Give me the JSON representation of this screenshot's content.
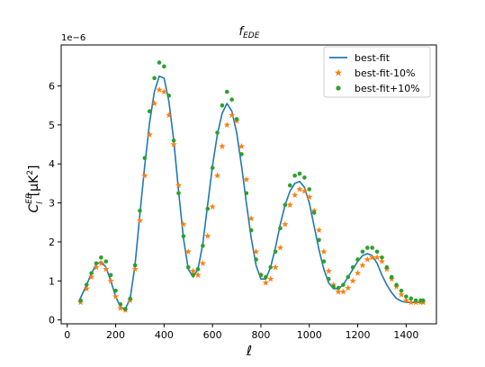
{
  "chart_data": {
    "type": "line",
    "title": "f_EDE",
    "title_main": "f",
    "title_sub": "EDE",
    "xlabel": "ℓ",
    "ylabel": "C_ℓ^{EB} [μK²]",
    "ylabel_parts": {
      "base": "C",
      "sup": "EB",
      "sub": "l",
      "rest": "[μK",
      "pow": "2",
      "close": "]"
    },
    "y_scale_label": "1e−6",
    "xlim": [
      -25,
      1525
    ],
    "ylim": [
      -0.1,
      7.05
    ],
    "x_ticks": [
      0,
      200,
      400,
      600,
      800,
      1000,
      1200,
      1400
    ],
    "x_tick_labels": [
      "0",
      "200",
      "400",
      "600",
      "800",
      "1000",
      "1200",
      "1400"
    ],
    "y_ticks": [
      0,
      1,
      2,
      3,
      4,
      5,
      6
    ],
    "y_tick_labels": [
      "0",
      "1",
      "2",
      "3",
      "4",
      "5",
      "6"
    ],
    "y_multiplier": 1e-06,
    "grid": false,
    "legend_position": "top-right",
    "colors": {
      "line": "#1f77b4",
      "star": "#ff7f0e",
      "dot": "#2ca02c"
    },
    "series": [
      {
        "name": "best-fit",
        "style": "line",
        "x": [
          50,
          80,
          100,
          120,
          140,
          160,
          180,
          200,
          220,
          240,
          260,
          280,
          300,
          320,
          340,
          360,
          380,
          400,
          420,
          440,
          460,
          480,
          500,
          520,
          540,
          560,
          580,
          600,
          620,
          640,
          660,
          680,
          700,
          720,
          740,
          760,
          780,
          800,
          820,
          840,
          860,
          880,
          900,
          920,
          940,
          960,
          980,
          1000,
          1020,
          1040,
          1060,
          1080,
          1100,
          1120,
          1140,
          1160,
          1180,
          1200,
          1220,
          1240,
          1260,
          1280,
          1300,
          1320,
          1340,
          1360,
          1380,
          1400,
          1420,
          1440,
          1460,
          1470
        ],
        "y": [
          0.5,
          0.9,
          1.2,
          1.42,
          1.5,
          1.35,
          1.0,
          0.6,
          0.33,
          0.28,
          0.55,
          1.4,
          2.7,
          3.95,
          5.05,
          5.85,
          6.25,
          6.2,
          5.6,
          4.6,
          3.3,
          2.1,
          1.3,
          1.1,
          1.3,
          1.95,
          2.95,
          3.95,
          4.75,
          5.3,
          5.55,
          5.35,
          4.8,
          3.95,
          3.0,
          2.1,
          1.4,
          1.05,
          1.05,
          1.35,
          1.85,
          2.45,
          2.95,
          3.3,
          3.5,
          3.55,
          3.4,
          3.0,
          2.4,
          1.8,
          1.3,
          0.95,
          0.8,
          0.8,
          0.9,
          1.1,
          1.3,
          1.5,
          1.65,
          1.7,
          1.65,
          1.45,
          1.15,
          0.9,
          0.7,
          0.55,
          0.48,
          0.45,
          0.45,
          0.45,
          0.45,
          0.45
        ]
      },
      {
        "name": "best-fit-10%",
        "style": "star",
        "x": [
          55,
          80,
          100,
          120,
          140,
          160,
          180,
          200,
          220,
          240,
          260,
          280,
          300,
          320,
          340,
          360,
          380,
          400,
          420,
          440,
          460,
          480,
          500,
          520,
          540,
          560,
          580,
          600,
          620,
          640,
          660,
          680,
          700,
          720,
          740,
          760,
          780,
          800,
          820,
          840,
          860,
          880,
          900,
          920,
          940,
          960,
          980,
          1000,
          1020,
          1040,
          1060,
          1080,
          1100,
          1120,
          1140,
          1160,
          1180,
          1200,
          1220,
          1240,
          1260,
          1280,
          1300,
          1320,
          1340,
          1360,
          1380,
          1400,
          1420,
          1440,
          1460,
          1470
        ],
        "y": [
          0.45,
          0.8,
          1.1,
          1.35,
          1.45,
          1.3,
          1.0,
          0.6,
          0.3,
          0.25,
          0.5,
          1.3,
          2.55,
          3.7,
          4.75,
          5.55,
          5.9,
          5.85,
          5.25,
          4.5,
          3.45,
          2.45,
          1.75,
          1.25,
          1.15,
          1.45,
          2.15,
          2.9,
          3.7,
          4.45,
          5.0,
          5.25,
          5.1,
          4.45,
          3.6,
          2.6,
          1.75,
          1.15,
          0.95,
          1.05,
          1.35,
          1.85,
          2.45,
          2.95,
          3.2,
          3.35,
          3.3,
          3.15,
          2.8,
          2.3,
          1.75,
          1.25,
          0.9,
          0.72,
          0.72,
          0.82,
          1.0,
          1.2,
          1.4,
          1.55,
          1.6,
          1.6,
          1.5,
          1.3,
          1.05,
          0.85,
          0.65,
          0.5,
          0.45,
          0.45,
          0.45,
          0.45
        ]
      },
      {
        "name": "best-fit+10%",
        "style": "dot",
        "x": [
          55,
          80,
          100,
          120,
          140,
          160,
          180,
          200,
          220,
          240,
          260,
          280,
          300,
          320,
          340,
          360,
          380,
          400,
          420,
          440,
          460,
          480,
          500,
          520,
          540,
          560,
          580,
          600,
          620,
          640,
          660,
          680,
          700,
          720,
          740,
          760,
          780,
          800,
          820,
          840,
          860,
          880,
          900,
          920,
          940,
          960,
          980,
          1000,
          1020,
          1040,
          1060,
          1080,
          1100,
          1120,
          1140,
          1160,
          1180,
          1200,
          1220,
          1240,
          1260,
          1280,
          1300,
          1320,
          1340,
          1360,
          1380,
          1400,
          1420,
          1440,
          1460,
          1470
        ],
        "y": [
          0.5,
          0.9,
          1.2,
          1.45,
          1.6,
          1.5,
          1.15,
          0.75,
          0.4,
          0.28,
          0.55,
          1.4,
          2.8,
          4.15,
          5.35,
          6.2,
          6.6,
          6.5,
          5.75,
          4.6,
          3.25,
          2.15,
          1.35,
          1.15,
          1.3,
          1.9,
          2.85,
          3.9,
          4.8,
          5.5,
          5.85,
          5.65,
          5.15,
          4.25,
          3.25,
          2.3,
          1.55,
          1.15,
          1.1,
          1.35,
          1.75,
          2.35,
          2.95,
          3.45,
          3.7,
          3.75,
          3.65,
          3.35,
          2.75,
          2.05,
          1.5,
          1.05,
          0.85,
          0.82,
          0.9,
          1.1,
          1.35,
          1.55,
          1.75,
          1.85,
          1.85,
          1.75,
          1.6,
          1.35,
          1.1,
          0.9,
          0.75,
          0.6,
          0.55,
          0.5,
          0.5,
          0.5
        ]
      }
    ]
  }
}
